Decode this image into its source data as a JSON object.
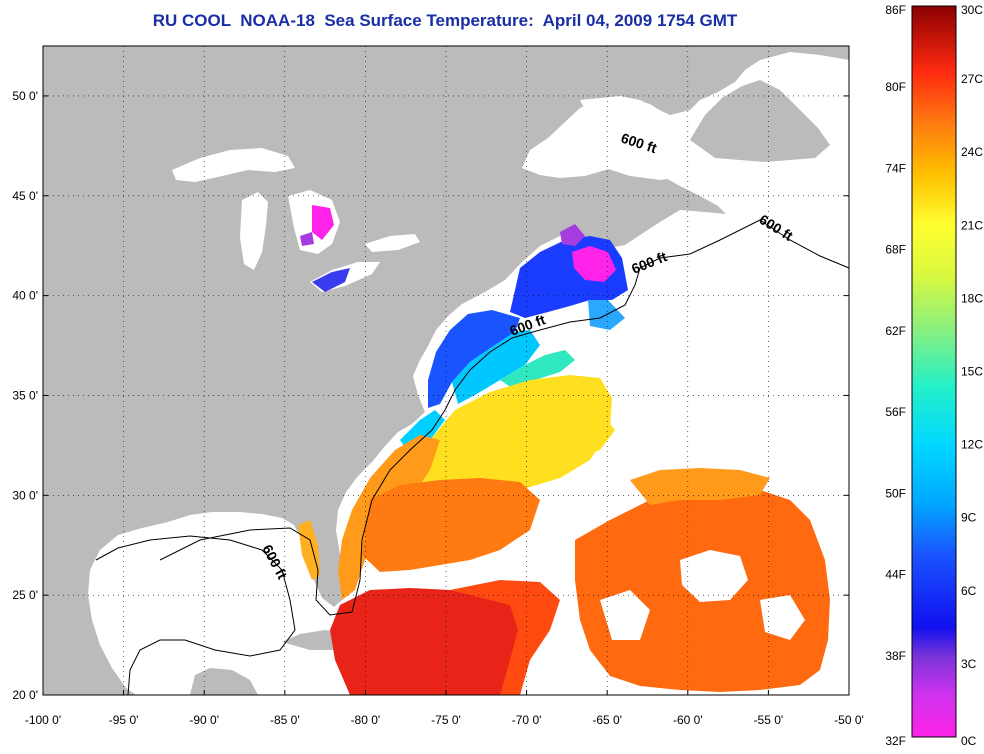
{
  "title": "RU COOL  NOAA-18  Sea Surface Temperature:  April 04, 2009 1754 GMT",
  "axes": {
    "lon_labels": [
      "-100 0'",
      "-95 0'",
      "-90 0'",
      "-85 0'",
      "-80 0'",
      "-75 0'",
      "-70 0'",
      "-65 0'",
      "-60 0'",
      "-55 0'",
      "-50 0'"
    ],
    "lat_labels": [
      "20 0'",
      "25 0'",
      "30 0'",
      "35 0'",
      "40 0'",
      "45 0'",
      "50 0'"
    ],
    "lon_range": [
      -100,
      -50
    ],
    "lat_range": [
      20,
      52.5
    ]
  },
  "contour_label": "600 ft",
  "colorbar": {
    "fahrenheit_labels": [
      "86F",
      "80F",
      "74F",
      "68F",
      "62F",
      "56F",
      "50F",
      "44F",
      "38F",
      "32F"
    ],
    "celsius_labels": [
      "30C",
      "27C",
      "24C",
      "21C",
      "18C",
      "15C",
      "12C",
      "9C",
      "6C",
      "3C",
      "0C"
    ],
    "colors": [
      "#8b0000",
      "#ff1a1a",
      "#ff7a10",
      "#ffd800",
      "#ffff30",
      "#b8f05c",
      "#25f0c8",
      "#00bfff",
      "#1a54ff",
      "#1010f0",
      "#8833d8",
      "#ff22e8"
    ]
  },
  "colors": {
    "land": "#bbbbbb",
    "no_data": "#ffffff",
    "title": "#1a2ea6"
  }
}
